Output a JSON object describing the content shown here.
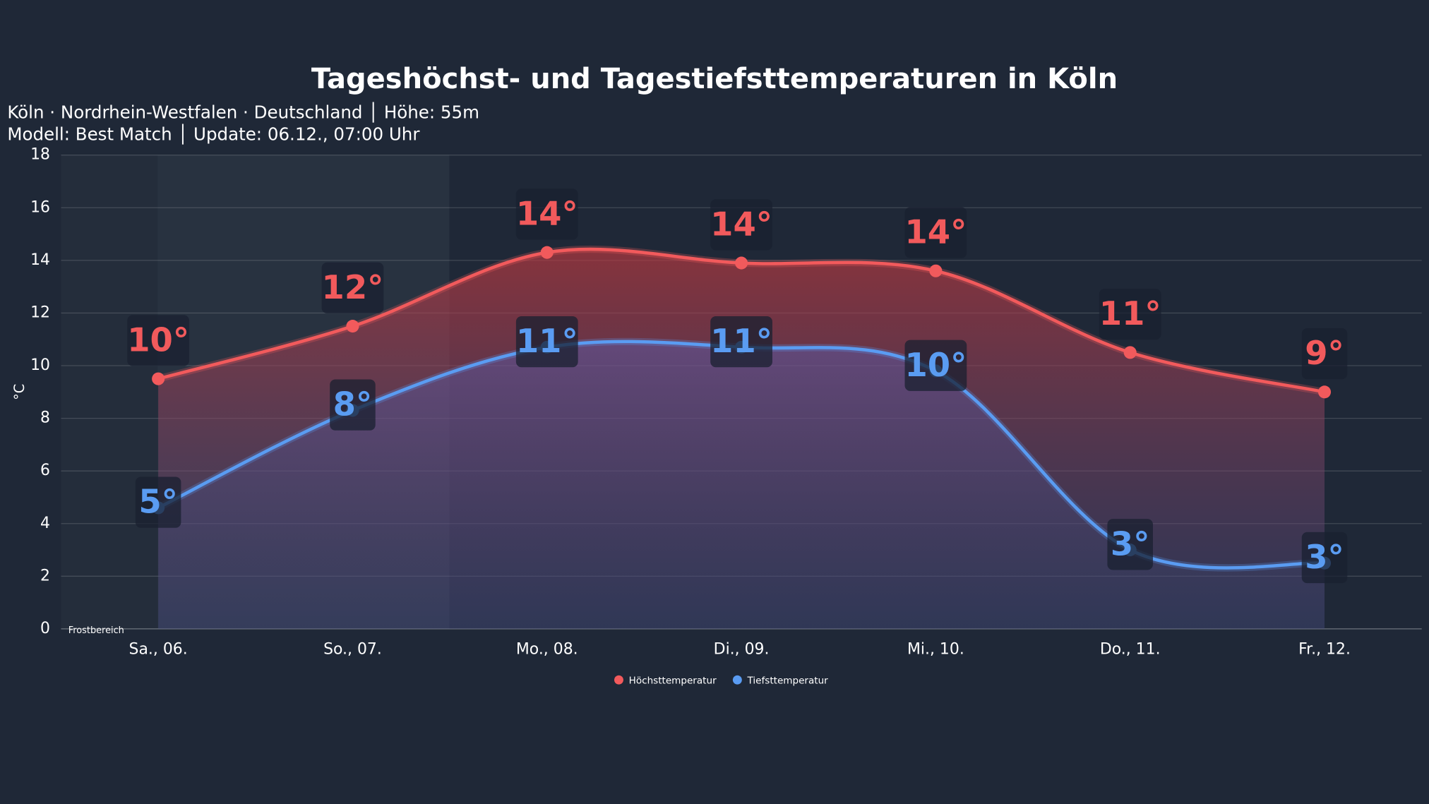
{
  "chart_data": {
    "type": "line",
    "title": "Tageshöchst- und Tagestiefsttemperaturen in Köln",
    "subtitle": [
      "Köln · Nordrhein-Westfalen · Deutschland │ Höhe: 55m",
      "Modell: Best Match │ Update: 06.12., 07:00 Uhr"
    ],
    "y_label": "°C",
    "categories": [
      "Sa., 06.",
      "So., 07.",
      "Mo., 08.",
      "Di., 09.",
      "Mi., 10.",
      "Do., 11.",
      "Fr., 12."
    ],
    "series": [
      {
        "name": "Höchsttemperatur",
        "color": "#f25a5c",
        "values": [
          9.5,
          11.5,
          14.3,
          13.9,
          13.6,
          10.5,
          9.0
        ],
        "value_labels": [
          "10°",
          "12°",
          "14°",
          "14°",
          "14°",
          "11°",
          "9°"
        ]
      },
      {
        "name": "Tiefsttemperatur",
        "color": "#5a9cf2",
        "values": [
          4.6,
          8.3,
          10.7,
          10.7,
          9.8,
          3.0,
          2.5
        ],
        "value_labels": [
          "5°",
          "8°",
          "11°",
          "11°",
          "10°",
          "3°",
          "3°"
        ]
      }
    ],
    "ylim": [
      0,
      18
    ],
    "yticks": [
      0,
      2,
      4,
      6,
      8,
      10,
      12,
      14,
      16,
      18
    ],
    "grid": true,
    "annotation": "Frostbereich",
    "legend": "bottom"
  }
}
